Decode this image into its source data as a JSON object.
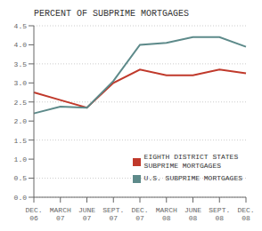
{
  "chart_data": {
    "type": "line",
    "title": "PERCENT OF SUBPRIME MORTGAGES",
    "categories": [
      "DEC.\n06",
      "MARCH\n07",
      "JUNE\n07",
      "SEPT.\n07",
      "DEC.\n07",
      "MARCH\n08",
      "JUNE\n08",
      "SEPT.\n08",
      "DEC.\n08"
    ],
    "series": [
      {
        "name": "EIGHTH DISTRICT STATES\nSUBPRIME MORTGAGES",
        "color": "#c0392b",
        "values": [
          2.75,
          2.55,
          2.35,
          3.0,
          3.35,
          3.2,
          3.2,
          3.35,
          3.25
        ]
      },
      {
        "name": "U.S. SUBPRIME MORTGAGES",
        "color": "#5d8a8a",
        "values": [
          2.2,
          2.38,
          2.35,
          3.05,
          4.0,
          4.05,
          4.2,
          4.2,
          3.95
        ]
      }
    ],
    "ylim": [
      0.0,
      4.5
    ],
    "yticks": [
      {
        "value": 0,
        "label": "0.0"
      },
      0.5,
      {
        "value": 1,
        "label": "1.0"
      },
      1.5,
      {
        "value": 2,
        "label": "2.0"
      },
      2.5,
      {
        "value": 3,
        "label": "3.0"
      },
      3.5,
      {
        "value": 4,
        "label": "4.0"
      },
      4.5
    ],
    "grid": true,
    "legend": "lower right"
  }
}
